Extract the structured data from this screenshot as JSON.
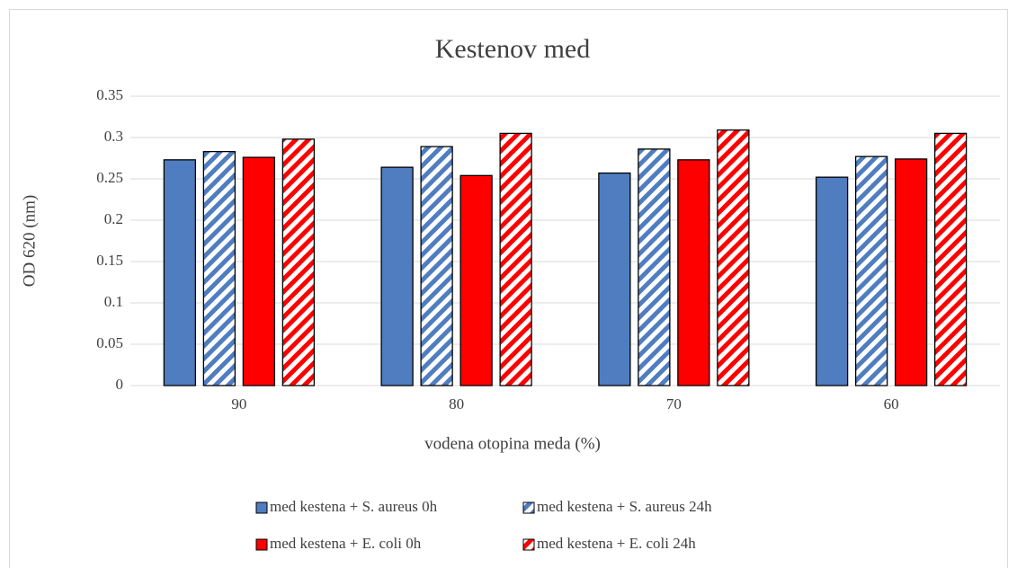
{
  "chart_data": {
    "type": "bar",
    "title": "Kestenov med",
    "x_label": "vodena otopina meda (%)",
    "y_label": "OD 620 (nm)",
    "categories": [
      "90",
      "80",
      "70",
      "60"
    ],
    "series": [
      {
        "name": "med kestena + S. aureus 0h",
        "color": "#4f7dc0",
        "hatch": false,
        "values": [
          0.273,
          0.264,
          0.257,
          0.252
        ]
      },
      {
        "name": "med kestena + S. aureus 24h",
        "color": "#4f7dc0",
        "hatch": true,
        "values": [
          0.283,
          0.289,
          0.286,
          0.277
        ]
      },
      {
        "name": "med kestena + E. coli 0h",
        "color": "#ff0000",
        "hatch": false,
        "values": [
          0.276,
          0.254,
          0.273,
          0.274
        ]
      },
      {
        "name": "med kestena + E. coli 24h",
        "color": "#ff0000",
        "hatch": true,
        "values": [
          0.298,
          0.305,
          0.309,
          0.305
        ]
      }
    ],
    "ylim": [
      0,
      0.35
    ],
    "yticks": [
      0,
      0.05,
      0.1,
      0.15,
      0.2,
      0.25,
      0.3,
      0.35
    ],
    "grid": true,
    "legend": "bottom"
  }
}
